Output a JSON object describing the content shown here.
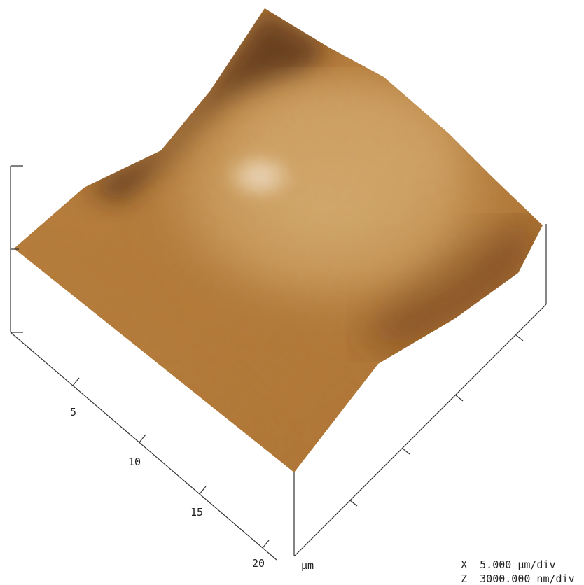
{
  "image": {
    "kind": "AFM 3D topography",
    "colors": {
      "base_plane": "#b07a38",
      "shadow": "#2a1206",
      "mid": "#a46a2a",
      "highlight": "#fbf6ea"
    }
  },
  "axes": {
    "x_ticks": [
      "5",
      "10",
      "15",
      "20"
    ],
    "unit": "µm"
  },
  "scale": {
    "x_label": "X",
    "x_value": "5.000 µm/div",
    "z_label": "Z",
    "z_value": "3000.000 nm/div"
  }
}
